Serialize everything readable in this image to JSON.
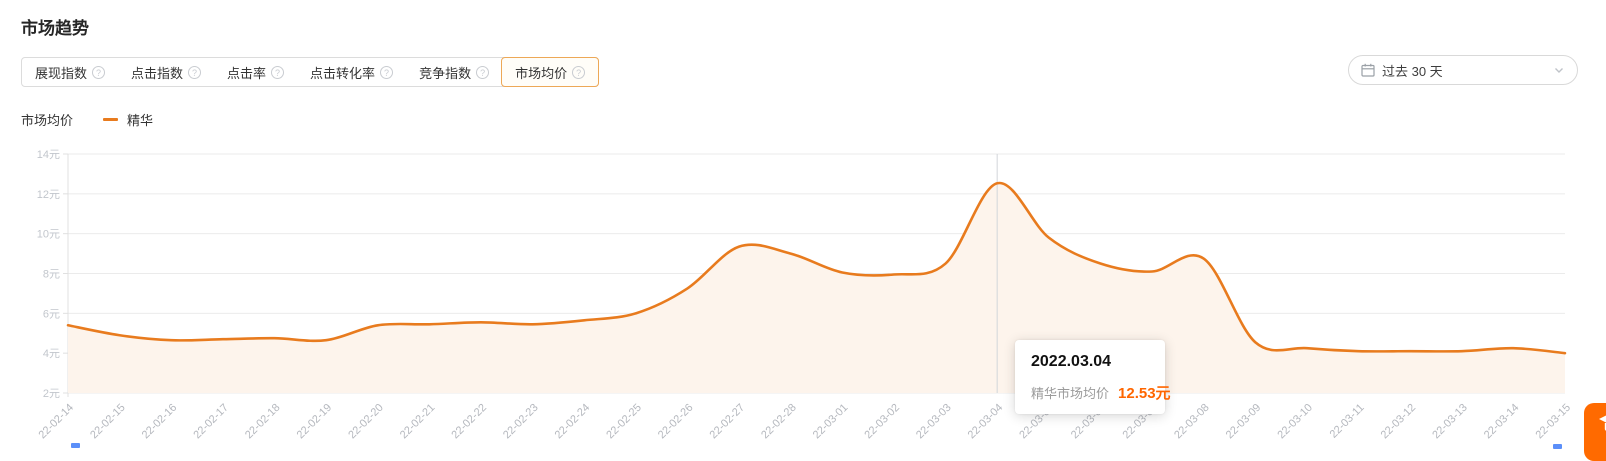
{
  "page": {
    "title": "市场趋势"
  },
  "tabs": {
    "help_glyph": "?",
    "items": [
      {
        "label": "展现指数",
        "selected": false
      },
      {
        "label": "点击指数",
        "selected": false
      },
      {
        "label": "点击率",
        "selected": false
      },
      {
        "label": "点击转化率",
        "selected": false
      },
      {
        "label": "竞争指数",
        "selected": false
      },
      {
        "label": "市场均价",
        "selected": true
      }
    ]
  },
  "time_range": {
    "selected": "过去 30 天",
    "icon": "calendar-icon"
  },
  "legend": {
    "axis_label": "市场均价",
    "series": [
      {
        "name": "精华",
        "color": "#E87B1E"
      }
    ]
  },
  "tooltip": {
    "date": "2022.03.04",
    "series_label": "精华市场均价",
    "value": "12.53元",
    "value_color": "#FF6600"
  },
  "floating_button": {
    "icon": "graduation-cap-icon",
    "color": "#FF6A00"
  },
  "fragments": {
    "color": "#5B8FF9"
  },
  "chart_data": {
    "type": "line",
    "title": "市场趋势 - 市场均价",
    "x": [
      "22-02-14",
      "22-02-15",
      "22-02-16",
      "22-02-17",
      "22-02-18",
      "22-02-19",
      "22-02-20",
      "22-02-21",
      "22-02-22",
      "22-02-23",
      "22-02-24",
      "22-02-25",
      "22-02-26",
      "22-02-27",
      "22-02-28",
      "22-03-01",
      "22-03-02",
      "22-03-03",
      "22-03-04",
      "22-03-05",
      "22-03-06",
      "22-03-07",
      "22-03-08",
      "22-03-09",
      "22-03-10",
      "22-03-11",
      "22-03-12",
      "22-03-13",
      "22-03-14",
      "22-03-15"
    ],
    "series": [
      {
        "name": "精华",
        "color": "#E87B1E",
        "area_color": "#FDF4EC",
        "values": [
          5.4,
          4.9,
          4.65,
          4.7,
          4.75,
          4.65,
          5.4,
          5.45,
          5.55,
          5.45,
          5.65,
          6.0,
          7.25,
          9.35,
          9.0,
          8.05,
          7.95,
          8.5,
          12.53,
          9.8,
          8.5,
          8.1,
          8.75,
          4.55,
          4.25,
          4.1,
          4.1,
          4.1,
          4.25,
          4.0
        ]
      }
    ],
    "ylim": [
      2,
      14
    ],
    "y_ticks": [
      2,
      4,
      6,
      8,
      10,
      12,
      14
    ],
    "y_tick_suffix": "元",
    "smooth": true,
    "grid": true,
    "legend_position": "top-left",
    "highlight_x": "22-03-04",
    "highlight_value": 12.53,
    "axis_colors": {
      "grid_line": "#EBEBEB",
      "axis_line": "#E0E0E0",
      "tick_label": "#C2C6CC",
      "x_label": "#B5B8BE",
      "crosshair": "#D2D5DA"
    }
  }
}
